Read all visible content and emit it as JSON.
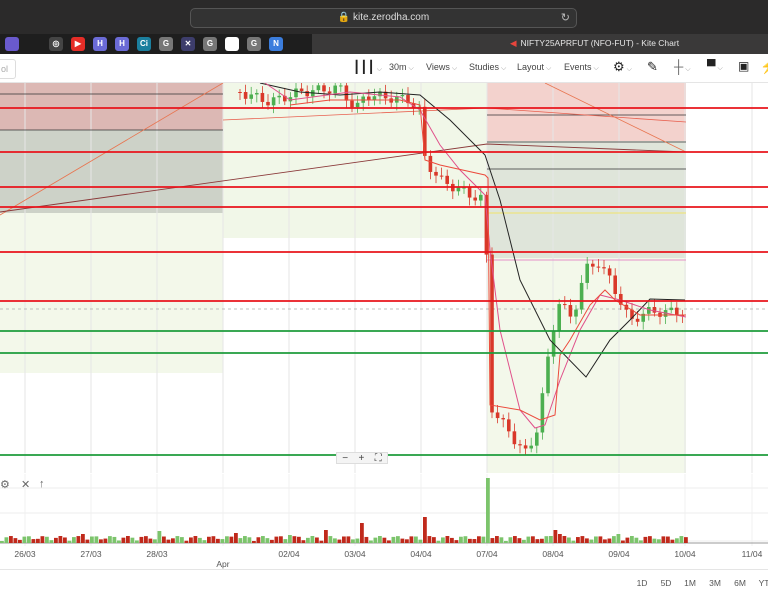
{
  "browser": {
    "url": "kite.zerodha.com",
    "tab_title": "NIFTY25APRFUT (NFO-FUT) - Kite Chart",
    "bookmarks": [
      {
        "icon": "square-app-icon",
        "label": "",
        "color": "#6a5acd"
      },
      {
        "icon": "bar-chart-icon",
        "label": "",
        "color": "#1e1e1e"
      },
      {
        "icon": "circle-target-icon",
        "label": "◎",
        "color": "#444"
      },
      {
        "icon": "youtube-icon",
        "label": "▶",
        "color": "#e52d27"
      },
      {
        "icon": "h-app-icon",
        "label": "H",
        "color": "#6b6bd6"
      },
      {
        "icon": "h-app-icon",
        "label": "H",
        "color": "#6b6bd6"
      },
      {
        "icon": "ci-icon",
        "label": "Ci",
        "color": "#1b7f9e"
      },
      {
        "icon": "g-icon",
        "label": "G",
        "color": "#777"
      },
      {
        "icon": "pattern-icon",
        "label": "✕",
        "color": "#3d3d6b"
      },
      {
        "icon": "g-icon",
        "label": "G",
        "color": "#777"
      },
      {
        "icon": "flag-icon",
        "label": "",
        "color": "#fff"
      },
      {
        "icon": "g-icon",
        "label": "G",
        "color": "#777"
      },
      {
        "icon": "n-icon",
        "label": "N",
        "color": "#3b7ddd"
      }
    ]
  },
  "toolbar": {
    "symbol_placeholder": "ol",
    "chart_type_icon": "candlestick-icon",
    "interval": "30m",
    "views": "Views",
    "studies": "Studies",
    "layout": "Layout",
    "events": "Events",
    "settings_icon": "gear-icon",
    "draw_icon": "pencil-icon",
    "crosshair_icon": "crosshair-icon",
    "comment_icon": "comment-icon",
    "panel_icon": "panel-icon",
    "flash_icon": "lightning-icon"
  },
  "chart": {
    "colors": {
      "up": "#4caf50",
      "down": "#d9382a",
      "resistance": "#e8141c",
      "support": "#1e9c3c"
    },
    "zoom_out": "−",
    "zoom_in": "+",
    "fullscreen_icon": "fullscreen-icon"
  },
  "volume_panel": {
    "settings": "⚙",
    "close": "✕",
    "move_up": "↑"
  },
  "x_axis": {
    "labels": [
      "26/03",
      "27/03",
      "28/03",
      "02/04",
      "03/04",
      "04/04",
      "07/04",
      "08/04",
      "09/04",
      "10/04",
      "11/04"
    ],
    "month": "Apr"
  },
  "ranges": [
    "1D",
    "5D",
    "1M",
    "3M",
    "6M",
    "YT"
  ]
}
